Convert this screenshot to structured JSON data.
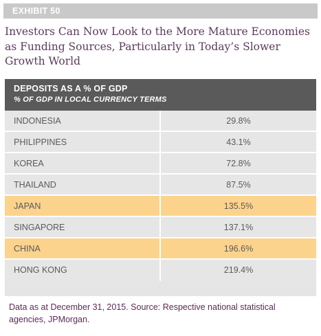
{
  "exhibit": "EXHIBIT 50",
  "title": "Investors Can Now Look to the More Mature Economies as Funding Sources, Particularly in Today’s Slower Growth World",
  "note": "Data as at December 31, 2015. Source: Respective national statistical agencies, JPMorgan.",
  "colors": {
    "header_bg": "#5a5a5a",
    "row_bg": "#e6e6e6",
    "highlight_bg": "#fcd38d",
    "title_text": "#5b3a5c"
  },
  "chart_data": {
    "type": "table",
    "header": "DEPOSITS AS A % OF GDP",
    "subheader": "% OF GDP IN LOCAL CURRENCY TERMS",
    "rows": [
      {
        "country": "INDONESIA",
        "value": "29.8%",
        "highlight": false
      },
      {
        "country": "PHILIPPINES",
        "value": "43.1%",
        "highlight": false
      },
      {
        "country": "KOREA",
        "value": "72.8%",
        "highlight": false
      },
      {
        "country": "THAILAND",
        "value": "87.5%",
        "highlight": false
      },
      {
        "country": "JAPAN",
        "value": "135.5%",
        "highlight": true
      },
      {
        "country": "SINGAPORE",
        "value": "137.1%",
        "highlight": false
      },
      {
        "country": "CHINA",
        "value": "196.6%",
        "highlight": true
      },
      {
        "country": "HONG KONG",
        "value": "219.4%",
        "highlight": false
      }
    ]
  }
}
